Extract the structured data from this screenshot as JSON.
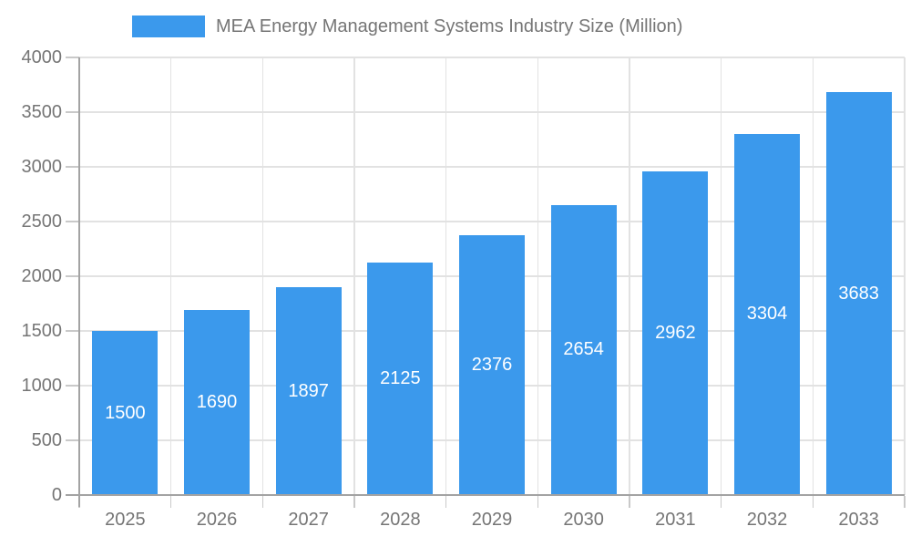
{
  "chart_data": {
    "type": "bar",
    "title": "MEA Energy Management Systems Industry Size (Million)",
    "categories": [
      "2025",
      "2026",
      "2027",
      "2028",
      "2029",
      "2030",
      "2031",
      "2032",
      "2033"
    ],
    "values": [
      1500,
      1690,
      1897,
      2125,
      2376,
      2654,
      2962,
      3304,
      3683
    ],
    "xlabel": "",
    "ylabel": "",
    "ylim": [
      0,
      4000
    ],
    "yticks": [
      0,
      500,
      1000,
      1500,
      2000,
      2500,
      3000,
      3500,
      4000
    ],
    "grid": true,
    "legend_position": "top",
    "bar_color": "#3b99ec",
    "value_label_color": "#ffffff",
    "tick_text_color": "#757575"
  },
  "colors": {
    "bar": "#3b99ec",
    "grid": "#e2e2e2",
    "axis": "#a3a3a3",
    "text": "#757575"
  }
}
